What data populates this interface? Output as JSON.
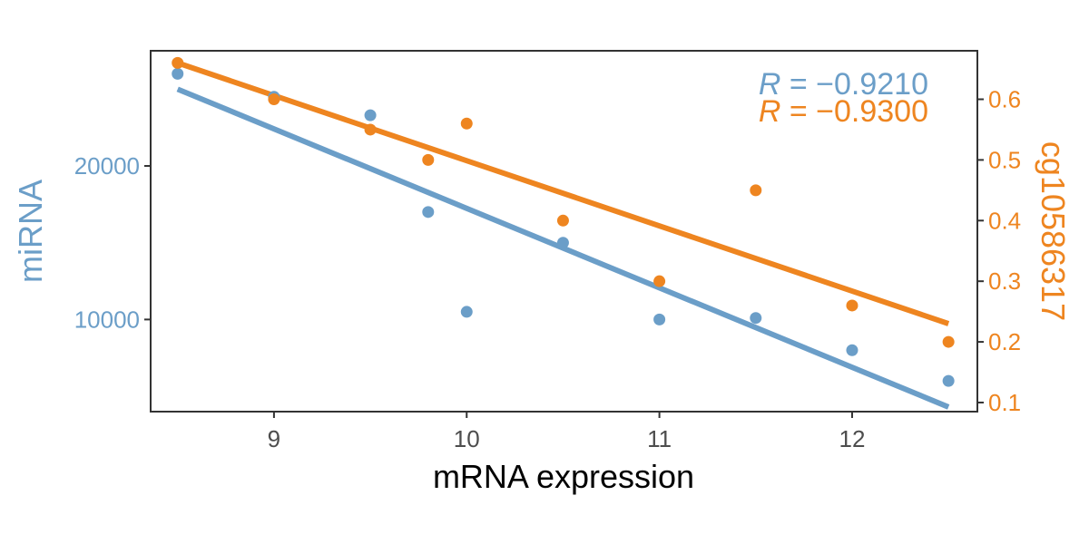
{
  "chart_data": {
    "type": "scatter",
    "xlabel": "mRNA expression",
    "ylabel_left": "miRNA",
    "ylabel_right": "cg10586317",
    "xlim": [
      8.36,
      12.65
    ],
    "ylim_left": [
      4000,
      27500
    ],
    "ylim_right": [
      0.085,
      0.68
    ],
    "x_ticks": [
      9,
      10,
      11,
      12
    ],
    "y_ticks_left": [
      10000,
      20000
    ],
    "y_ticks_right": [
      0.1,
      0.2,
      0.3,
      0.4,
      0.5,
      0.6
    ],
    "grid": false,
    "series": [
      {
        "axis": "left",
        "color": "#6b9ec8",
        "points": [
          {
            "x": 8.5,
            "y": 26000
          },
          {
            "x": 9.0,
            "y": 24500
          },
          {
            "x": 9.5,
            "y": 23300
          },
          {
            "x": 9.8,
            "y": 17000
          },
          {
            "x": 10.0,
            "y": 10500
          },
          {
            "x": 10.5,
            "y": 15000
          },
          {
            "x": 11.0,
            "y": 10000
          },
          {
            "x": 11.5,
            "y": 10100
          },
          {
            "x": 12.0,
            "y": 8000
          },
          {
            "x": 12.5,
            "y": 6000
          }
        ],
        "fit": {
          "x": [
            8.5,
            12.5
          ],
          "y": [
            25000,
            4300
          ]
        }
      },
      {
        "axis": "right",
        "color": "#ee8520",
        "points": [
          {
            "x": 8.5,
            "y": 0.66
          },
          {
            "x": 9.0,
            "y": 0.6
          },
          {
            "x": 9.5,
            "y": 0.55
          },
          {
            "x": 9.8,
            "y": 0.5
          },
          {
            "x": 10.0,
            "y": 0.56
          },
          {
            "x": 10.5,
            "y": 0.4
          },
          {
            "x": 11.0,
            "y": 0.3
          },
          {
            "x": 11.5,
            "y": 0.45
          },
          {
            "x": 12.0,
            "y": 0.26
          },
          {
            "x": 12.5,
            "y": 0.2
          }
        ],
        "fit": {
          "x": [
            8.5,
            12.5
          ],
          "y": [
            0.66,
            0.23
          ]
        }
      }
    ],
    "annotations": [
      {
        "var": "R",
        "text": " = −0.9210",
        "color": "#6b9ec8"
      },
      {
        "var": "R",
        "text": " = −0.9300",
        "color": "#ee8520"
      }
    ]
  }
}
